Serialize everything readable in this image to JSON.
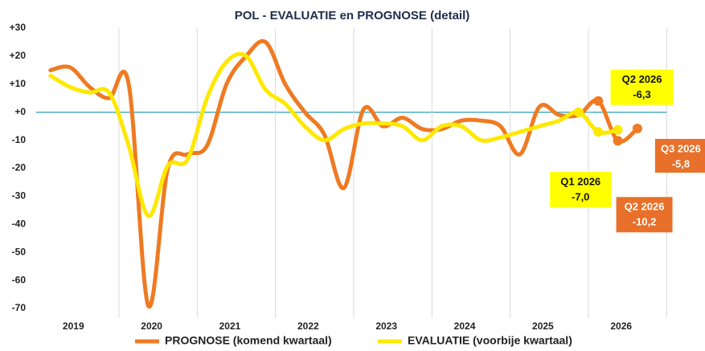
{
  "chart_data": {
    "type": "line",
    "title": "POL - EVALUATIE en PROGNOSE (detail)",
    "x": [
      2019.125,
      2019.375,
      2019.625,
      2019.875,
      2020.125,
      2020.375,
      2020.625,
      2020.875,
      2021.125,
      2021.375,
      2021.625,
      2021.875,
      2022.125,
      2022.375,
      2022.625,
      2022.875,
      2023.125,
      2023.375,
      2023.625,
      2023.875,
      2024.125,
      2024.375,
      2024.625,
      2024.875,
      2025.125,
      2025.375,
      2025.625,
      2025.875,
      2026.125,
      2026.375,
      2026.625
    ],
    "series": [
      {
        "name": "PROGNOSE (komend kwartaal)",
        "color": "#ef7a22",
        "values": [
          15,
          16,
          9,
          5,
          10,
          -69,
          -20,
          -15,
          -12,
          10,
          20,
          25,
          10,
          0,
          -8,
          -27,
          1,
          -5,
          -2,
          -6,
          -6,
          -3,
          -3,
          -5,
          -15,
          2,
          -1,
          -1,
          4,
          -10.2,
          -5.8
        ],
        "label_titles": [
          null,
          null,
          null,
          null,
          null,
          null,
          null,
          null,
          null,
          null,
          null,
          null,
          null,
          null,
          null,
          null,
          null,
          null,
          null,
          null,
          null,
          null,
          null,
          null,
          null,
          null,
          null,
          null,
          null,
          "Q2 2026",
          "Q3 2026"
        ],
        "value_labels": [
          null,
          null,
          null,
          null,
          null,
          null,
          null,
          null,
          null,
          null,
          null,
          null,
          null,
          null,
          null,
          null,
          null,
          null,
          null,
          null,
          null,
          null,
          null,
          null,
          null,
          null,
          null,
          null,
          null,
          "-10,2",
          "-5,8"
        ],
        "label_color": "#e8702a"
      },
      {
        "name": "EVALUATIE (voorbije kwartaal)",
        "color": "#ffe800",
        "values": [
          13,
          9,
          7,
          7,
          -12,
          -37,
          -19,
          -17,
          5,
          18,
          20,
          8,
          3,
          -5,
          -10,
          -6,
          -4,
          -4,
          -5,
          -10,
          -5,
          -5,
          -10,
          -9,
          -7,
          -5,
          -3,
          0,
          -7.0,
          -6.3,
          null
        ],
        "label_titles": [
          null,
          null,
          null,
          null,
          null,
          null,
          null,
          null,
          null,
          null,
          null,
          null,
          null,
          null,
          null,
          null,
          null,
          null,
          null,
          null,
          null,
          null,
          null,
          null,
          null,
          null,
          null,
          null,
          "Q1 2026",
          "Q2 2026",
          null
        ],
        "value_labels": [
          null,
          null,
          null,
          null,
          null,
          null,
          null,
          null,
          null,
          null,
          null,
          null,
          null,
          null,
          null,
          null,
          null,
          null,
          null,
          null,
          null,
          null,
          null,
          null,
          null,
          null,
          null,
          null,
          "-7,0",
          "-6,3",
          null
        ],
        "label_color": "#ffff00"
      }
    ],
    "xlim": [
      2019,
      2027
    ],
    "xticks": [
      {
        "value": 2019.5,
        "label": "2019"
      },
      {
        "value": 2020.5,
        "label": "2020"
      },
      {
        "value": 2021.5,
        "label": "2021"
      },
      {
        "value": 2022.5,
        "label": "2022"
      },
      {
        "value": 2023.5,
        "label": "2023"
      },
      {
        "value": 2024.5,
        "label": "2024"
      },
      {
        "value": 2025.5,
        "label": "2025"
      },
      {
        "value": 2026.5,
        "label": "2026"
      }
    ],
    "ylim": [
      -70,
      30
    ],
    "yticks": [
      {
        "value": 30,
        "label": "+30"
      },
      {
        "value": 20,
        "label": "+20"
      },
      {
        "value": 10,
        "label": "+10"
      },
      {
        "value": 0,
        "label": "+0"
      },
      -10,
      -20,
      -30,
      -40,
      -50,
      -60,
      -70
    ],
    "zero_line_color": "#4bacc6",
    "grid": true,
    "legend": "bottom"
  }
}
